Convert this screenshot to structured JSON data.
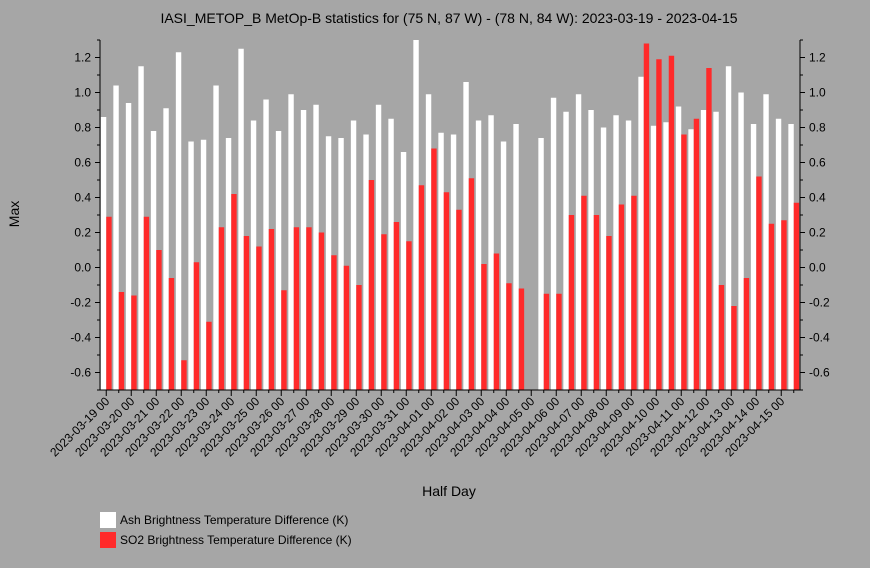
{
  "chart_data": {
    "type": "bar",
    "title": "IASI_METOP_B MetOp-B statistics for (75 N, 87 W) - (78 N, 84 W): 2023-03-19 - 2023-04-15",
    "xlabel": "Half Day",
    "ylabel": "Max",
    "ylim": [
      -0.7,
      1.3
    ],
    "yticks": [
      -0.6,
      -0.4,
      -0.2,
      0.0,
      0.2,
      0.4,
      0.6,
      0.8,
      1.0,
      1.2
    ],
    "grid": false,
    "legend_placement": "bottom-left",
    "x_tick_labels": [
      "2023-03-19 00",
      "2023-03-20 00",
      "2023-03-21 00",
      "2023-03-22 00",
      "2023-03-23 00",
      "2023-03-24 00",
      "2023-03-25 00",
      "2023-03-26 00",
      "2023-03-27 00",
      "2023-03-28 00",
      "2023-03-29 00",
      "2023-03-30 00",
      "2023-03-31 00",
      "2023-04-01 00",
      "2023-04-02 00",
      "2023-04-03 00",
      "2023-04-04 00",
      "2023-04-05 00",
      "2023-04-06 00",
      "2023-04-07 00",
      "2023-04-08 00",
      "2023-04-09 00",
      "2023-04-10 00",
      "2023-04-11 00",
      "2023-04-12 00",
      "2023-04-13 00",
      "2023-04-14 00",
      "2023-04-15 00"
    ],
    "series": [
      {
        "name": "Ash Brightness Temperature Difference (K)",
        "color": "#ffffff",
        "values": [
          0.86,
          1.04,
          0.94,
          1.15,
          0.78,
          0.91,
          1.23,
          0.72,
          0.73,
          1.04,
          0.74,
          1.25,
          0.84,
          0.96,
          0.78,
          0.99,
          0.9,
          0.93,
          0.75,
          0.74,
          0.84,
          0.76,
          0.93,
          0.85,
          0.66,
          1.3,
          0.99,
          0.77,
          0.76,
          1.06,
          0.84,
          0.87,
          0.72,
          0.82,
          null,
          0.74,
          0.97,
          0.89,
          0.99,
          0.9,
          0.8,
          0.87,
          0.84,
          1.09,
          0.81,
          0.83,
          0.92,
          0.79,
          0.9,
          0.89,
          1.15,
          1.0,
          0.82,
          0.99,
          0.85,
          0.82
        ]
      },
      {
        "name": "SO2 Brightness Temperature Difference (K)",
        "color": "#ff2a2a",
        "values": [
          0.29,
          -0.14,
          -0.16,
          0.29,
          0.1,
          -0.06,
          -0.53,
          0.03,
          -0.31,
          0.23,
          0.42,
          0.18,
          0.12,
          0.22,
          -0.13,
          0.23,
          0.23,
          0.2,
          0.07,
          0.01,
          -0.1,
          0.5,
          0.19,
          0.26,
          0.15,
          0.47,
          0.68,
          0.43,
          0.33,
          0.51,
          0.02,
          0.08,
          -0.09,
          -0.12,
          null,
          -0.15,
          -0.15,
          0.3,
          0.41,
          0.3,
          0.18,
          0.36,
          0.41,
          1.28,
          1.19,
          1.21,
          0.76,
          0.85,
          1.14,
          -0.1,
          -0.22,
          -0.06,
          0.52,
          0.25,
          0.27,
          0.37
        ]
      }
    ]
  }
}
